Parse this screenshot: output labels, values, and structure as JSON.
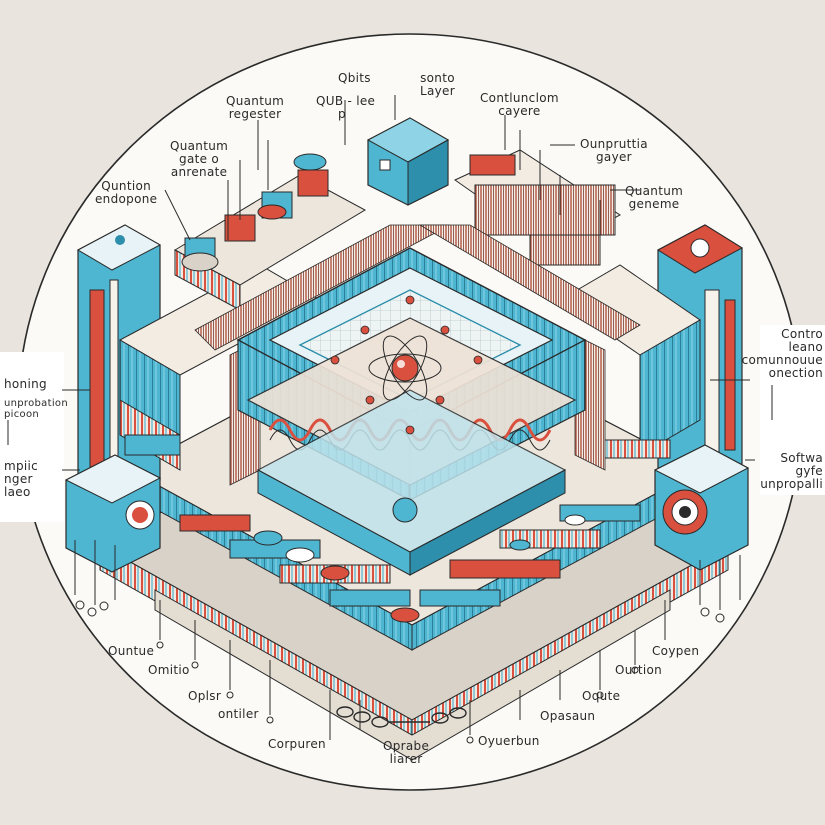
{
  "colors": {
    "background": "#e9e5de",
    "disc": "#fbfaf6",
    "cyan": "#4fb6d1",
    "cyan_dark": "#2d8fab",
    "red": "#d9503f",
    "ink": "#2a2a2a",
    "grey": "#cfcac2"
  },
  "labels": {
    "qbits": "Qbits",
    "qub_line1": "QUB - lee",
    "qub_line2": "p",
    "sonto_line1": "sonto",
    "sonto_line2": "Layer",
    "quantum_register_line1": "Quantum",
    "quantum_register_line2": "regester",
    "contlunclom_line1": "Contlunclom",
    "contlunclom_line2": "cayere",
    "quantum_gate_line1": "Quantum",
    "quantum_gate_line2": "gate o",
    "quantum_gate_line3": "anrenate",
    "ounpruttia_line1": "Ounpruttia",
    "ounpruttia_line2": "gayer",
    "quntion_line1": "Quntion",
    "quntion_line2": "endopone",
    "quantum_geneme_line1": "Quantum",
    "quantum_geneme_line2": "geneme",
    "honing": "honing",
    "unprobation_line1": "unprobation",
    "unprobation_line2": "picoon",
    "contro_line1": "Contro",
    "contro_line2": "leano",
    "contro_line3": "comunnouue",
    "contro_line4": "onection",
    "mpiic_line1": "mpiic",
    "mpiic_line2": "nger",
    "mpiic_line3": "laeo",
    "softwa_line1": "Softwa",
    "softwa_line2": "gyfe",
    "softwa_line3": "unpropalli",
    "ountue": "Ountue",
    "omitio": "Omitio",
    "oplsr": "Oplsr",
    "ontiler": "ontiler",
    "coypen": "Coypen",
    "ourtion": "Ourtion",
    "oqute": "Oqute",
    "opasaun": "Opasaun",
    "corpuren": "Corpuren",
    "oprabe_line1": "Oprabe",
    "oprabe_line2": "liarer",
    "oyuerbun": "Oyuerbun"
  }
}
